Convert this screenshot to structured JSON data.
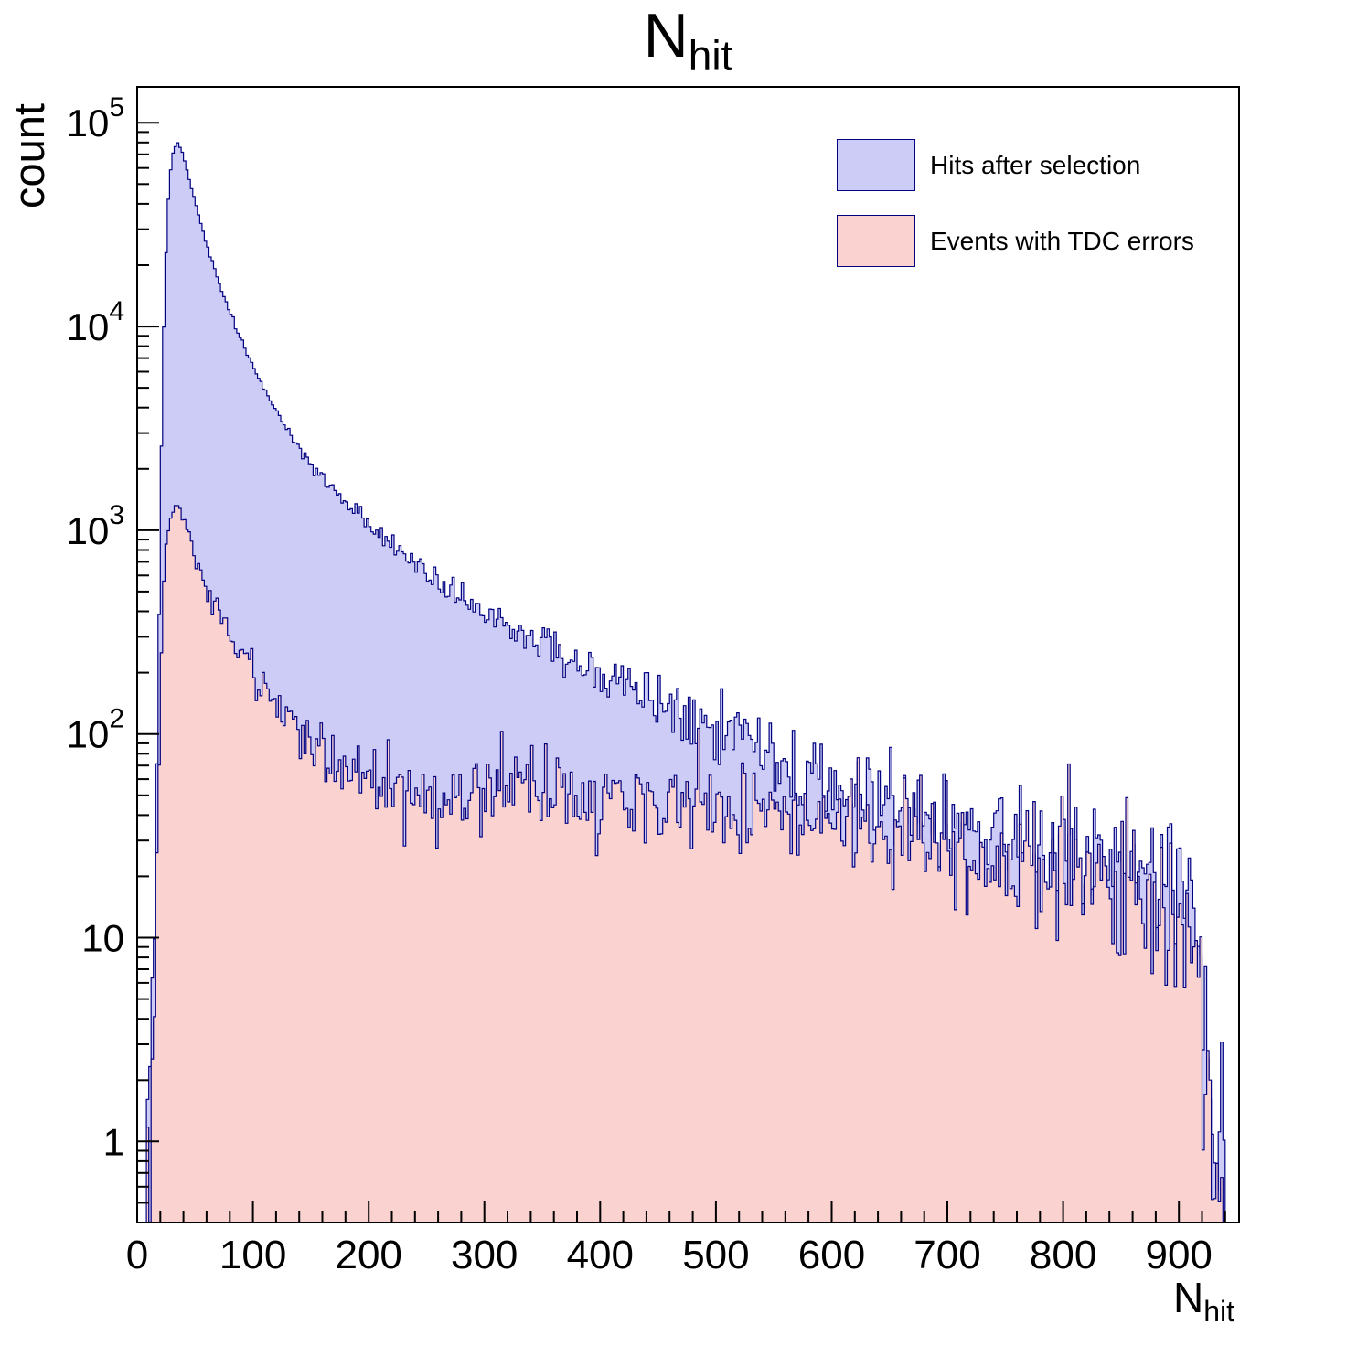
{
  "title": {
    "main": "N",
    "sub": "hit"
  },
  "axes": {
    "y_label": "count",
    "x_label_main": "N",
    "x_label_sub": "hit",
    "x_ticks": [
      0,
      100,
      200,
      300,
      400,
      500,
      600,
      700,
      800,
      900
    ],
    "x_minor_step": 20,
    "y_ticks": [
      {
        "v": 1,
        "base": "1",
        "exp": ""
      },
      {
        "v": 10,
        "base": "10",
        "exp": ""
      },
      {
        "v": 100,
        "base": "10",
        "exp": "2"
      },
      {
        "v": 1000,
        "base": "10",
        "exp": "3"
      },
      {
        "v": 10000,
        "base": "10",
        "exp": "4"
      },
      {
        "v": 100000,
        "base": "10",
        "exp": "5"
      }
    ]
  },
  "chart_data": {
    "type": "histogram",
    "title": "N_hit",
    "xlabel": "N_hit",
    "ylabel": "count",
    "x_range": [
      0,
      952
    ],
    "y_range": [
      0.4,
      150000
    ],
    "y_scale": "log",
    "bin_width": 2,
    "grid": false,
    "legend_position": "top-right",
    "frame_color": "#000000",
    "series": [
      {
        "name": "Hits after selection",
        "fill": "#ccccf6",
        "line": "#000080",
        "peak": {
          "x": 35,
          "y": 79000
        },
        "anchors": [
          [
            8,
            0.4
          ],
          [
            10,
            1
          ],
          [
            12,
            2.5
          ],
          [
            14,
            6
          ],
          [
            16,
            25
          ],
          [
            18,
            150
          ],
          [
            20,
            1200
          ],
          [
            22,
            6000
          ],
          [
            24,
            16000
          ],
          [
            26,
            34000
          ],
          [
            28,
            52000
          ],
          [
            30,
            66000
          ],
          [
            32,
            75000
          ],
          [
            35,
            79000
          ],
          [
            38,
            74000
          ],
          [
            42,
            62000
          ],
          [
            46,
            50000
          ],
          [
            50,
            41000
          ],
          [
            55,
            32000
          ],
          [
            60,
            25500
          ],
          [
            65,
            20500
          ],
          [
            70,
            16800
          ],
          [
            75,
            14000
          ],
          [
            80,
            11800
          ],
          [
            85,
            10000
          ],
          [
            90,
            8600
          ],
          [
            95,
            7400
          ],
          [
            100,
            6400
          ],
          [
            110,
            4900
          ],
          [
            120,
            3850
          ],
          [
            130,
            3100
          ],
          [
            140,
            2550
          ],
          [
            150,
            2150
          ],
          [
            160,
            1830
          ],
          [
            170,
            1580
          ],
          [
            180,
            1370
          ],
          [
            190,
            1200
          ],
          [
            200,
            1060
          ],
          [
            210,
            950
          ],
          [
            220,
            855
          ],
          [
            230,
            770
          ],
          [
            240,
            700
          ],
          [
            250,
            635
          ],
          [
            260,
            575
          ],
          [
            270,
            525
          ],
          [
            280,
            480
          ],
          [
            290,
            440
          ],
          [
            300,
            405
          ],
          [
            310,
            373
          ],
          [
            320,
            344
          ],
          [
            330,
            318
          ],
          [
            340,
            295
          ],
          [
            350,
            274
          ],
          [
            360,
            255
          ],
          [
            370,
            238
          ],
          [
            380,
            222
          ],
          [
            390,
            208
          ],
          [
            400,
            195
          ],
          [
            410,
            183
          ],
          [
            420,
            172
          ],
          [
            430,
            161
          ],
          [
            440,
            151
          ],
          [
            450,
            142
          ],
          [
            460,
            133
          ],
          [
            470,
            125
          ],
          [
            480,
            117
          ],
          [
            490,
            110
          ],
          [
            500,
            103
          ],
          [
            510,
            96
          ],
          [
            520,
            90
          ],
          [
            530,
            84
          ],
          [
            540,
            79
          ],
          [
            550,
            74
          ],
          [
            560,
            69
          ],
          [
            570,
            65
          ],
          [
            580,
            61
          ],
          [
            590,
            57
          ],
          [
            600,
            54
          ],
          [
            620,
            49
          ],
          [
            640,
            45
          ],
          [
            660,
            41
          ],
          [
            680,
            38
          ],
          [
            700,
            35
          ],
          [
            720,
            33
          ],
          [
            740,
            31
          ],
          [
            760,
            29
          ],
          [
            780,
            27
          ],
          [
            800,
            25.5
          ],
          [
            820,
            24
          ],
          [
            840,
            23
          ],
          [
            860,
            22
          ],
          [
            880,
            21
          ],
          [
            900,
            20
          ],
          [
            908,
            18
          ],
          [
            914,
            14
          ],
          [
            918,
            10
          ],
          [
            922,
            5
          ],
          [
            926,
            2
          ],
          [
            930,
            0.8
          ],
          [
            934,
            0.4
          ],
          [
            938,
            1.1
          ],
          [
            940,
            0.4
          ],
          [
            952,
            0.4
          ]
        ]
      },
      {
        "name": "Events with TDC errors",
        "fill": "#fad3d1",
        "line": "#000080",
        "peak": {
          "x": 33,
          "y": 1320
        },
        "anchors": [
          [
            8,
            0.4
          ],
          [
            10,
            0.8
          ],
          [
            12,
            1.5
          ],
          [
            14,
            4
          ],
          [
            16,
            12
          ],
          [
            18,
            45
          ],
          [
            20,
            170
          ],
          [
            22,
            420
          ],
          [
            24,
            700
          ],
          [
            26,
            950
          ],
          [
            28,
            1130
          ],
          [
            30,
            1250
          ],
          [
            33,
            1310
          ],
          [
            36,
            1270
          ],
          [
            40,
            1130
          ],
          [
            44,
            960
          ],
          [
            48,
            820
          ],
          [
            52,
            700
          ],
          [
            56,
            610
          ],
          [
            60,
            535
          ],
          [
            65,
            455
          ],
          [
            70,
            395
          ],
          [
            75,
            345
          ],
          [
            80,
            305
          ],
          [
            85,
            272
          ],
          [
            90,
            243
          ],
          [
            95,
            219
          ],
          [
            100,
            198
          ],
          [
            110,
            164
          ],
          [
            120,
            139
          ],
          [
            130,
            119
          ],
          [
            140,
            104
          ],
          [
            150,
            93
          ],
          [
            160,
            84
          ],
          [
            170,
            77
          ],
          [
            180,
            71
          ],
          [
            190,
            66
          ],
          [
            200,
            62
          ],
          [
            210,
            59
          ],
          [
            220,
            56
          ],
          [
            230,
            54
          ],
          [
            240,
            52
          ],
          [
            260,
            50
          ],
          [
            280,
            49
          ],
          [
            300,
            48
          ],
          [
            320,
            48
          ],
          [
            340,
            49
          ],
          [
            360,
            50
          ],
          [
            380,
            49
          ],
          [
            400,
            48
          ],
          [
            420,
            47
          ],
          [
            440,
            46
          ],
          [
            460,
            45
          ],
          [
            480,
            44
          ],
          [
            500,
            43
          ],
          [
            520,
            42
          ],
          [
            540,
            41
          ],
          [
            560,
            40
          ],
          [
            580,
            39
          ],
          [
            600,
            37
          ],
          [
            620,
            35
          ],
          [
            640,
            33
          ],
          [
            660,
            31
          ],
          [
            680,
            30
          ],
          [
            700,
            28
          ],
          [
            720,
            27
          ],
          [
            740,
            25
          ],
          [
            760,
            24
          ],
          [
            780,
            22
          ],
          [
            800,
            21
          ],
          [
            820,
            20
          ],
          [
            840,
            18
          ],
          [
            860,
            17
          ],
          [
            880,
            16
          ],
          [
            900,
            15
          ],
          [
            906,
            13
          ],
          [
            912,
            11
          ],
          [
            916,
            8
          ],
          [
            920,
            4
          ],
          [
            924,
            1.8
          ],
          [
            928,
            0.8
          ],
          [
            932,
            0.4
          ],
          [
            936,
            1
          ],
          [
            938,
            0.4
          ],
          [
            952,
            0.4
          ]
        ]
      }
    ]
  }
}
